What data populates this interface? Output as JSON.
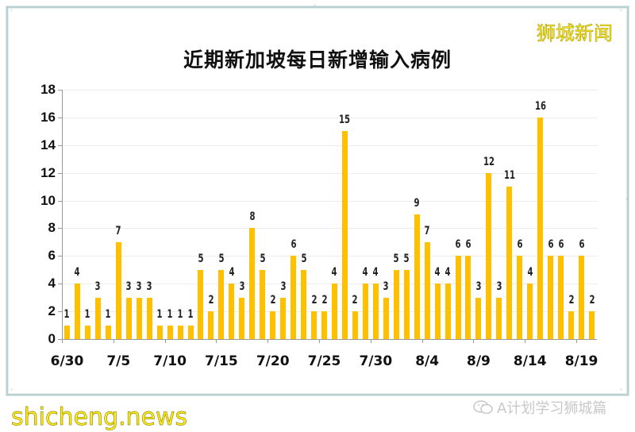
{
  "watermark": {
    "brand": "狮城新闻",
    "site": "shicheng.news",
    "account": "A计划学习狮城篇"
  },
  "colors": {
    "bar": "#FFC000",
    "frame": "#B9CFD0",
    "brand_text": "#FFEE22"
  },
  "chart_data": {
    "type": "bar",
    "title": "近期新加坡每日新增输入病例",
    "xlabel": "",
    "ylabel": "",
    "ylim": [
      0,
      18
    ],
    "yticks": [
      0,
      2,
      4,
      6,
      8,
      10,
      12,
      14,
      16,
      18
    ],
    "grid": true,
    "legend": null,
    "data_labels": true,
    "x_tick_labels": [
      "6/30",
      "7/5",
      "7/10",
      "7/15",
      "7/20",
      "7/25",
      "7/30",
      "8/4",
      "8/9",
      "8/14",
      "8/19"
    ],
    "categories": [
      "6/30",
      "7/1",
      "7/2",
      "7/3",
      "7/4",
      "7/5",
      "7/6",
      "7/7",
      "7/8",
      "7/9",
      "7/10",
      "7/11",
      "7/12",
      "7/13",
      "7/14",
      "7/15",
      "7/16",
      "7/17",
      "7/18",
      "7/19",
      "7/20",
      "7/21",
      "7/22",
      "7/23",
      "7/24",
      "7/25",
      "7/26",
      "7/27",
      "7/28",
      "7/29",
      "7/30",
      "7/31",
      "8/1",
      "8/2",
      "8/3",
      "8/4",
      "8/5",
      "8/6",
      "8/7",
      "8/8",
      "8/9",
      "8/10",
      "8/11",
      "8/12",
      "8/13",
      "8/14",
      "8/15",
      "8/16",
      "8/17",
      "8/18",
      "8/19",
      "8/20"
    ],
    "values": [
      1,
      4,
      1,
      3,
      1,
      7,
      3,
      3,
      3,
      1,
      1,
      1,
      1,
      5,
      2,
      5,
      4,
      3,
      8,
      5,
      2,
      3,
      6,
      5,
      2,
      2,
      4,
      15,
      2,
      4,
      4,
      3,
      5,
      5,
      9,
      7,
      4,
      4,
      6,
      6,
      3,
      12,
      3,
      11,
      6,
      4,
      16,
      6,
      6,
      2,
      6,
      2
    ]
  }
}
